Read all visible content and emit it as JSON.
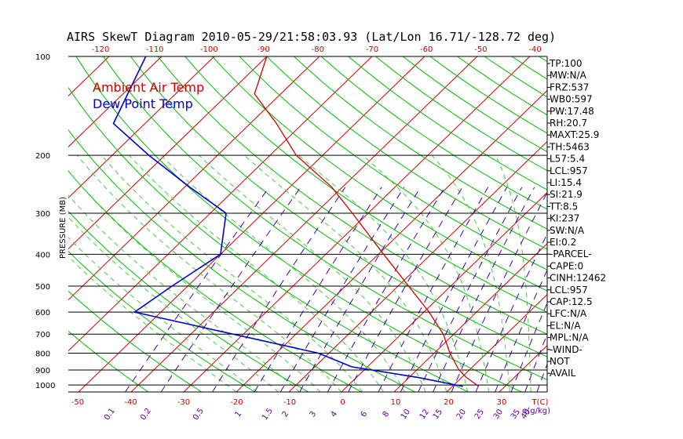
{
  "chart_data": {
    "type": "line",
    "title": "AIRS SkewT Diagram 2010-05-29/21:58:03.93 (Lat/Lon 16.71/-128.72 deg)",
    "ylabel": "PRESSURE (MB)",
    "xlabel": "T(C)",
    "mixing_ratio_label": "q(g/kg)",
    "pressure_ticks": [
      100,
      200,
      300,
      400,
      500,
      600,
      700,
      800,
      900,
      1000
    ],
    "top_temp_ticks": [
      -120,
      -110,
      -100,
      -90,
      -80,
      -70,
      -60,
      -50,
      -40
    ],
    "bottom_temp_ticks": [
      -50,
      -40,
      -30,
      -20,
      -10,
      0,
      10,
      20,
      30
    ],
    "mixing_ratio_ticks": [
      "0.1",
      "0.2",
      "0.5",
      "1",
      "1.5",
      "2",
      "3",
      "4",
      "6",
      "8",
      "10",
      "12",
      "15",
      "20",
      "25",
      "30",
      "35",
      "40"
    ],
    "legend": [
      {
        "name": "Ambient Air Temp",
        "color": "#cc0000"
      },
      {
        "name": "Dew Point Temp",
        "color": "#0000cc"
      }
    ],
    "series": [
      {
        "name": "Ambient Air Temp",
        "color": "#cc0000",
        "points": [
          {
            "p": 100,
            "t": -80
          },
          {
            "p": 130,
            "t": -75
          },
          {
            "p": 160,
            "t": -65
          },
          {
            "p": 200,
            "t": -55
          },
          {
            "p": 250,
            "t": -42
          },
          {
            "p": 300,
            "t": -33
          },
          {
            "p": 400,
            "t": -19
          },
          {
            "p": 500,
            "t": -8
          },
          {
            "p": 600,
            "t": 1
          },
          {
            "p": 700,
            "t": 8
          },
          {
            "p": 800,
            "t": 13
          },
          {
            "p": 900,
            "t": 18
          },
          {
            "p": 950,
            "t": 21
          },
          {
            "p": 1010,
            "t": 25
          }
        ]
      },
      {
        "name": "Dew Point Temp",
        "color": "#0000cc",
        "points": [
          {
            "p": 100,
            "t": -103
          },
          {
            "p": 160,
            "t": -96
          },
          {
            "p": 200,
            "t": -83
          },
          {
            "p": 250,
            "t": -69
          },
          {
            "p": 300,
            "t": -57
          },
          {
            "p": 400,
            "t": -50
          },
          {
            "p": 500,
            "t": -53
          },
          {
            "p": 600,
            "t": -55
          },
          {
            "p": 700,
            "t": -32
          },
          {
            "p": 800,
            "t": -12
          },
          {
            "p": 880,
            "t": -3
          },
          {
            "p": 950,
            "t": 12
          },
          {
            "p": 1010,
            "t": 22
          }
        ]
      }
    ],
    "indices": [
      "TP:100",
      "MW:N/A",
      "FRZ:537",
      "WB0:597",
      "PW:17.48",
      "RH:20.7",
      "MAXT:25.9",
      "TH:5463",
      "L57:5.4",
      "LCL:957",
      "LI:15.4",
      "SI:21.9",
      "TT:8.5",
      "KI:237",
      "SW:N/A",
      "EI:0.2",
      "-PARCEL-",
      "CAPE:0",
      "CINH:12462",
      "LCL:957",
      "CAP:12.5",
      "LFC:N/A",
      "EL:N/A",
      "MPL:N/A",
      "-WIND-",
      "NOT",
      "AVAIL"
    ],
    "colors": {
      "isotherm": "#cc0000",
      "dry_adiabat": "#00bb00",
      "moist_adiabat": "#44cc44",
      "mixing_ratio": "#4400aa",
      "isobar": "#000000"
    }
  }
}
